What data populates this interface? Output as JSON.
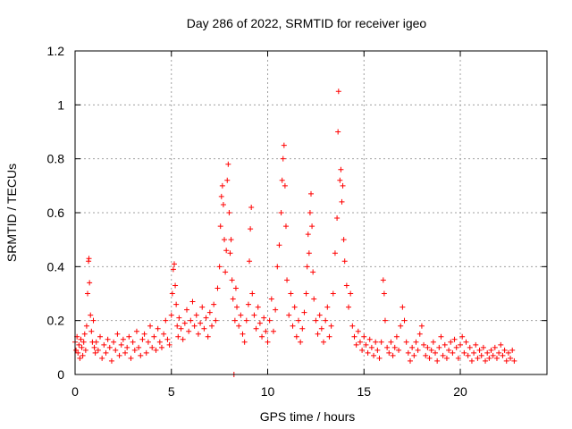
{
  "chart_data": {
    "type": "scatter",
    "title": "Day 286 of 2022, SRMTID for receiver igeo",
    "xlabel": "GPS time / hours",
    "ylabel": "SRMTID / TECUs",
    "xlim": [
      0,
      24.5
    ],
    "ylim": [
      0,
      1.2
    ],
    "x_ticks": [
      0,
      5,
      10,
      15,
      20
    ],
    "x_tick_labels": [
      "0",
      "5",
      "10",
      "15",
      "20"
    ],
    "y_ticks": [
      0,
      0.2,
      0.4,
      0.6,
      0.8,
      1.0,
      1.2
    ],
    "y_tick_labels": [
      "0",
      "0.2",
      "0.4",
      "0.6",
      "0.8",
      "1",
      "1.2"
    ],
    "grid": true,
    "marker": "plus",
    "color": "#ff0000",
    "series": [
      {
        "name": "SRMTID",
        "points": [
          [
            0.0,
            0.12
          ],
          [
            0.05,
            0.09
          ],
          [
            0.1,
            0.14
          ],
          [
            0.15,
            0.08
          ],
          [
            0.2,
            0.11
          ],
          [
            0.25,
            0.06
          ],
          [
            0.3,
            0.13
          ],
          [
            0.35,
            0.1
          ],
          [
            0.4,
            0.07
          ],
          [
            0.45,
            0.12
          ],
          [
            0.5,
            0.15
          ],
          [
            0.55,
            0.09
          ],
          [
            0.6,
            0.18
          ],
          [
            0.65,
            0.3
          ],
          [
            0.7,
            0.42
          ],
          [
            0.72,
            0.43
          ],
          [
            0.75,
            0.34
          ],
          [
            0.8,
            0.22
          ],
          [
            0.85,
            0.16
          ],
          [
            0.9,
            0.12
          ],
          [
            0.95,
            0.2
          ],
          [
            1.0,
            0.1
          ],
          [
            1.05,
            0.08
          ],
          [
            1.1,
            0.12
          ],
          [
            1.2,
            0.09
          ],
          [
            1.3,
            0.14
          ],
          [
            1.4,
            0.06
          ],
          [
            1.5,
            0.11
          ],
          [
            1.6,
            0.08
          ],
          [
            1.7,
            0.13
          ],
          [
            1.8,
            0.1
          ],
          [
            1.9,
            0.05
          ],
          [
            2.0,
            0.12
          ],
          [
            2.1,
            0.09
          ],
          [
            2.2,
            0.15
          ],
          [
            2.3,
            0.07
          ],
          [
            2.4,
            0.11
          ],
          [
            2.5,
            0.13
          ],
          [
            2.6,
            0.08
          ],
          [
            2.7,
            0.1
          ],
          [
            2.8,
            0.14
          ],
          [
            2.9,
            0.06
          ],
          [
            3.0,
            0.12
          ],
          [
            3.1,
            0.09
          ],
          [
            3.2,
            0.16
          ],
          [
            3.3,
            0.1
          ],
          [
            3.4,
            0.07
          ],
          [
            3.5,
            0.13
          ],
          [
            3.6,
            0.15
          ],
          [
            3.7,
            0.08
          ],
          [
            3.8,
            0.12
          ],
          [
            3.9,
            0.18
          ],
          [
            4.0,
            0.1
          ],
          [
            4.1,
            0.14
          ],
          [
            4.2,
            0.09
          ],
          [
            4.3,
            0.17
          ],
          [
            4.4,
            0.12
          ],
          [
            4.5,
            0.1
          ],
          [
            4.6,
            0.15
          ],
          [
            4.7,
            0.2
          ],
          [
            4.8,
            0.13
          ],
          [
            4.9,
            0.11
          ],
          [
            5.0,
            0.22
          ],
          [
            5.05,
            0.3
          ],
          [
            5.1,
            0.39
          ],
          [
            5.15,
            0.41
          ],
          [
            5.2,
            0.33
          ],
          [
            5.25,
            0.26
          ],
          [
            5.3,
            0.18
          ],
          [
            5.35,
            0.14
          ],
          [
            5.4,
            0.21
          ],
          [
            5.5,
            0.17
          ],
          [
            5.6,
            0.13
          ],
          [
            5.7,
            0.19
          ],
          [
            5.8,
            0.24
          ],
          [
            5.9,
            0.16
          ],
          [
            6.0,
            0.2
          ],
          [
            6.1,
            0.27
          ],
          [
            6.2,
            0.18
          ],
          [
            6.3,
            0.22
          ],
          [
            6.4,
            0.15
          ],
          [
            6.5,
            0.19
          ],
          [
            6.6,
            0.25
          ],
          [
            6.7,
            0.17
          ],
          [
            6.8,
            0.21
          ],
          [
            6.9,
            0.14
          ],
          [
            7.0,
            0.23
          ],
          [
            7.1,
            0.18
          ],
          [
            7.2,
            0.26
          ],
          [
            7.3,
            0.2
          ],
          [
            7.4,
            0.32
          ],
          [
            7.5,
            0.4
          ],
          [
            7.55,
            0.55
          ],
          [
            7.6,
            0.66
          ],
          [
            7.65,
            0.7
          ],
          [
            7.7,
            0.63
          ],
          [
            7.75,
            0.5
          ],
          [
            7.8,
            0.38
          ],
          [
            7.85,
            0.46
          ],
          [
            7.9,
            0.72
          ],
          [
            7.95,
            0.78
          ],
          [
            8.0,
            0.6
          ],
          [
            8.05,
            0.45
          ],
          [
            8.1,
            0.5
          ],
          [
            8.15,
            0.35
          ],
          [
            8.2,
            0.28
          ],
          [
            8.25,
            0.0
          ],
          [
            8.3,
            0.2
          ],
          [
            8.35,
            0.32
          ],
          [
            8.4,
            0.25
          ],
          [
            8.5,
            0.18
          ],
          [
            8.6,
            0.22
          ],
          [
            8.7,
            0.15
          ],
          [
            8.8,
            0.12
          ],
          [
            8.9,
            0.2
          ],
          [
            9.0,
            0.26
          ],
          [
            9.05,
            0.42
          ],
          [
            9.1,
            0.54
          ],
          [
            9.15,
            0.62
          ],
          [
            9.2,
            0.3
          ],
          [
            9.3,
            0.22
          ],
          [
            9.4,
            0.17
          ],
          [
            9.5,
            0.25
          ],
          [
            9.6,
            0.19
          ],
          [
            9.7,
            0.14
          ],
          [
            9.8,
            0.21
          ],
          [
            9.9,
            0.16
          ],
          [
            10.0,
            0.12
          ],
          [
            10.1,
            0.2
          ],
          [
            10.2,
            0.28
          ],
          [
            10.3,
            0.16
          ],
          [
            10.4,
            0.24
          ],
          [
            10.5,
            0.4
          ],
          [
            10.6,
            0.48
          ],
          [
            10.7,
            0.6
          ],
          [
            10.75,
            0.72
          ],
          [
            10.8,
            0.8
          ],
          [
            10.85,
            0.85
          ],
          [
            10.9,
            0.7
          ],
          [
            10.95,
            0.55
          ],
          [
            11.0,
            0.35
          ],
          [
            11.1,
            0.22
          ],
          [
            11.2,
            0.3
          ],
          [
            11.3,
            0.18
          ],
          [
            11.4,
            0.25
          ],
          [
            11.5,
            0.14
          ],
          [
            11.6,
            0.2
          ],
          [
            11.7,
            0.12
          ],
          [
            11.8,
            0.17
          ],
          [
            11.9,
            0.23
          ],
          [
            12.0,
            0.3
          ],
          [
            12.05,
            0.4
          ],
          [
            12.1,
            0.52
          ],
          [
            12.15,
            0.45
          ],
          [
            12.2,
            0.6
          ],
          [
            12.25,
            0.67
          ],
          [
            12.3,
            0.55
          ],
          [
            12.35,
            0.38
          ],
          [
            12.4,
            0.28
          ],
          [
            12.5,
            0.2
          ],
          [
            12.6,
            0.15
          ],
          [
            12.7,
            0.22
          ],
          [
            12.8,
            0.17
          ],
          [
            12.9,
            0.12
          ],
          [
            13.0,
            0.2
          ],
          [
            13.1,
            0.25
          ],
          [
            13.2,
            0.14
          ],
          [
            13.3,
            0.18
          ],
          [
            13.4,
            0.3
          ],
          [
            13.5,
            0.45
          ],
          [
            13.6,
            0.58
          ],
          [
            13.65,
            0.9
          ],
          [
            13.68,
            1.05
          ],
          [
            13.75,
            0.72
          ],
          [
            13.8,
            0.76
          ],
          [
            13.85,
            0.64
          ],
          [
            13.9,
            0.7
          ],
          [
            13.95,
            0.5
          ],
          [
            14.0,
            0.42
          ],
          [
            14.1,
            0.33
          ],
          [
            14.2,
            0.25
          ],
          [
            14.3,
            0.3
          ],
          [
            14.4,
            0.18
          ],
          [
            14.5,
            0.14
          ],
          [
            14.6,
            0.11
          ],
          [
            14.7,
            0.16
          ],
          [
            14.8,
            0.12
          ],
          [
            14.9,
            0.09
          ],
          [
            15.0,
            0.14
          ],
          [
            15.1,
            0.11
          ],
          [
            15.2,
            0.08
          ],
          [
            15.3,
            0.13
          ],
          [
            15.4,
            0.1
          ],
          [
            15.5,
            0.07
          ],
          [
            15.6,
            0.12
          ],
          [
            15.7,
            0.09
          ],
          [
            15.8,
            0.06
          ],
          [
            15.9,
            0.12
          ],
          [
            16.0,
            0.35
          ],
          [
            16.05,
            0.3
          ],
          [
            16.1,
            0.2
          ],
          [
            16.2,
            0.1
          ],
          [
            16.3,
            0.08
          ],
          [
            16.4,
            0.12
          ],
          [
            16.5,
            0.07
          ],
          [
            16.6,
            0.1
          ],
          [
            16.7,
            0.14
          ],
          [
            16.8,
            0.09
          ],
          [
            16.9,
            0.18
          ],
          [
            17.0,
            0.25
          ],
          [
            17.1,
            0.2
          ],
          [
            17.2,
            0.12
          ],
          [
            17.3,
            0.08
          ],
          [
            17.4,
            0.05
          ],
          [
            17.5,
            0.1
          ],
          [
            17.6,
            0.07
          ],
          [
            17.7,
            0.12
          ],
          [
            17.8,
            0.09
          ],
          [
            17.9,
            0.15
          ],
          [
            18.0,
            0.18
          ],
          [
            18.1,
            0.11
          ],
          [
            18.2,
            0.07
          ],
          [
            18.3,
            0.1
          ],
          [
            18.4,
            0.06
          ],
          [
            18.5,
            0.09
          ],
          [
            18.6,
            0.12
          ],
          [
            18.7,
            0.08
          ],
          [
            18.8,
            0.05
          ],
          [
            18.9,
            0.1
          ],
          [
            19.0,
            0.14
          ],
          [
            19.1,
            0.07
          ],
          [
            19.2,
            0.11
          ],
          [
            19.3,
            0.06
          ],
          [
            19.4,
            0.09
          ],
          [
            19.5,
            0.12
          ],
          [
            19.6,
            0.08
          ],
          [
            19.7,
            0.13
          ],
          [
            19.8,
            0.1
          ],
          [
            19.9,
            0.06
          ],
          [
            20.0,
            0.11
          ],
          [
            20.1,
            0.14
          ],
          [
            20.2,
            0.08
          ],
          [
            20.3,
            0.12
          ],
          [
            20.4,
            0.07
          ],
          [
            20.5,
            0.1
          ],
          [
            20.6,
            0.05
          ],
          [
            20.7,
            0.08
          ],
          [
            20.8,
            0.11
          ],
          [
            20.9,
            0.06
          ],
          [
            21.0,
            0.09
          ],
          [
            21.1,
            0.07
          ],
          [
            21.2,
            0.1
          ],
          [
            21.3,
            0.05
          ],
          [
            21.4,
            0.08
          ],
          [
            21.5,
            0.06
          ],
          [
            21.6,
            0.09
          ],
          [
            21.7,
            0.07
          ],
          [
            21.8,
            0.1
          ],
          [
            21.9,
            0.06
          ],
          [
            22.0,
            0.08
          ],
          [
            22.1,
            0.11
          ],
          [
            22.2,
            0.07
          ],
          [
            22.3,
            0.09
          ],
          [
            22.4,
            0.05
          ],
          [
            22.5,
            0.08
          ],
          [
            22.6,
            0.06
          ],
          [
            22.7,
            0.09
          ],
          [
            22.8,
            0.05
          ]
        ]
      }
    ]
  }
}
